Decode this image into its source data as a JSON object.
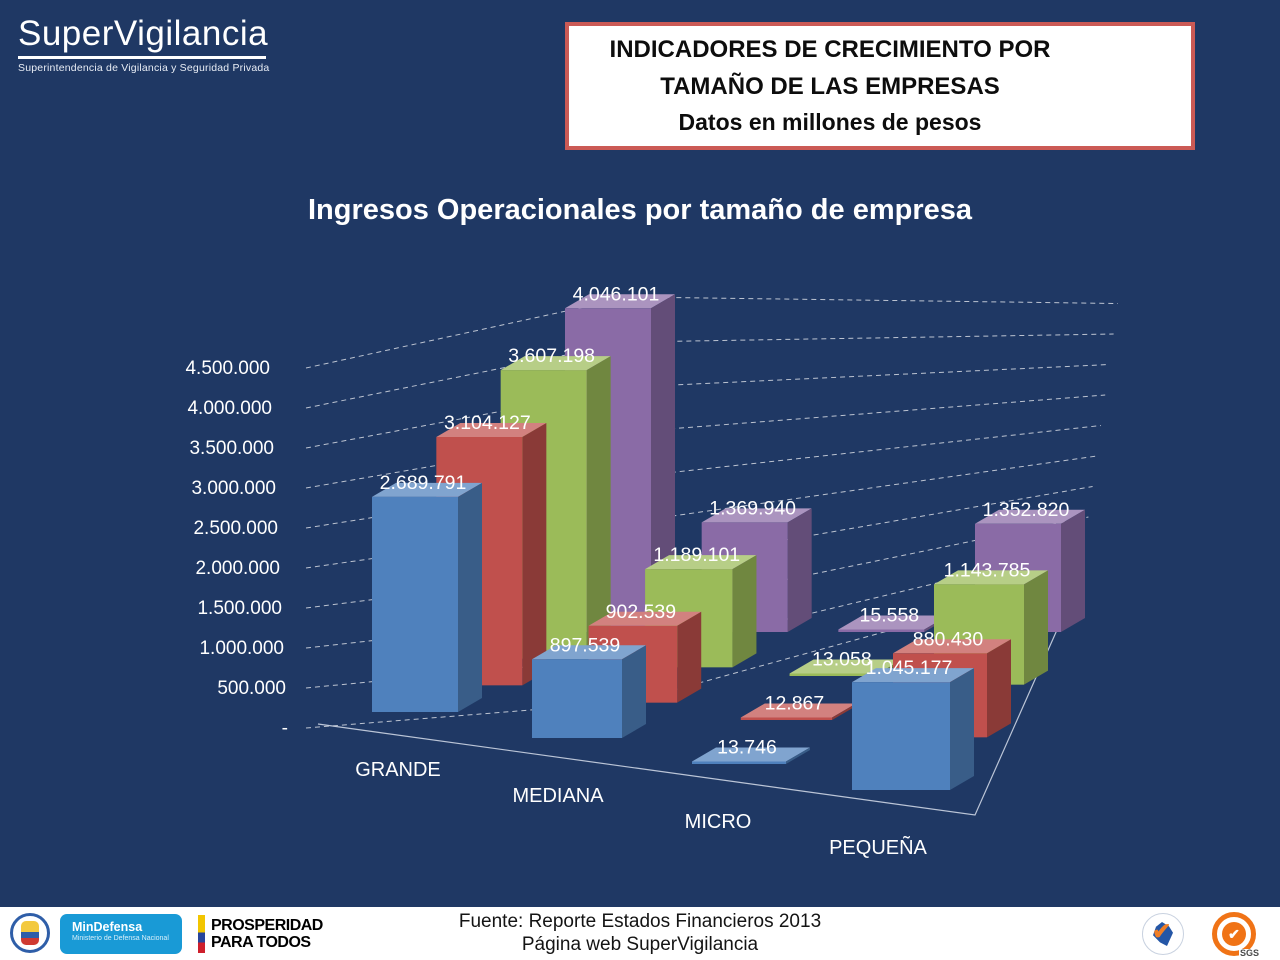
{
  "header": {
    "logo": {
      "title": "SuperVigilancia",
      "subtitle": "Superintendencia de Vigilancia y Seguridad Privada"
    },
    "title_box": {
      "border_color": "#CB5A55",
      "lines": [
        "INDICADORES DE CRECIMIENTO POR",
        "TAMAÑO DE LAS EMPRESAS",
        "Datos en millones de pesos"
      ]
    }
  },
  "chart_data": {
    "type": "bar",
    "style": "3d-column",
    "title": "Ingresos Operacionales por tamaño de empresa",
    "categories": [
      "GRANDE",
      "MEDIANA",
      "MICRO",
      "PEQUEÑA"
    ],
    "series": [
      {
        "name": "serie-1-azul",
        "color": "#4F81BD",
        "values": [
          2689791,
          897539,
          13746,
          1045177
        ],
        "labels": [
          "2.689.791",
          "897.539",
          "13.746",
          "1.045.177"
        ]
      },
      {
        "name": "serie-2-roja",
        "color": "#C0504D",
        "values": [
          3104127,
          902539,
          12867,
          880430
        ],
        "labels": [
          "3.104.127",
          "902.539",
          "12.867",
          "880.430"
        ]
      },
      {
        "name": "serie-3-verde",
        "color": "#9BBB59",
        "values": [
          3607198,
          1189101,
          13058,
          1143785
        ],
        "labels": [
          "3.607.198",
          "1.189.101",
          "13.058",
          "1.143.785"
        ]
      },
      {
        "name": "serie-4-morada",
        "color": "#8A6BA6",
        "values": [
          4046101,
          1369940,
          15558,
          1352820
        ],
        "labels": [
          "4.046.101",
          "1.369.940",
          "15.558",
          "1.352.820"
        ]
      }
    ],
    "y_axis": {
      "max": 4500000,
      "ticks_bottom_to_top": [
        "-",
        "500.000",
        "1.000.000",
        "1.500.000",
        "2.000.000",
        "2.500.000",
        "3.000.000",
        "3.500.000",
        "4.000.000",
        "4.500.000"
      ]
    },
    "legend": "none",
    "grid": true,
    "background": "#1F3864",
    "label_color": "#FFFFFF"
  },
  "footer": {
    "source_line1": "Fuente: Reporte Estados Financieros 2013",
    "source_line2": "Página web SuperVigilancia",
    "mindefensa": {
      "title": "MinDefensa",
      "subtitle": "Ministerio de Defensa Nacional"
    },
    "prosperidad": {
      "line1": "PROSPERIDAD",
      "line2": "PARA TODOS"
    },
    "sgs_label": "SGS"
  }
}
